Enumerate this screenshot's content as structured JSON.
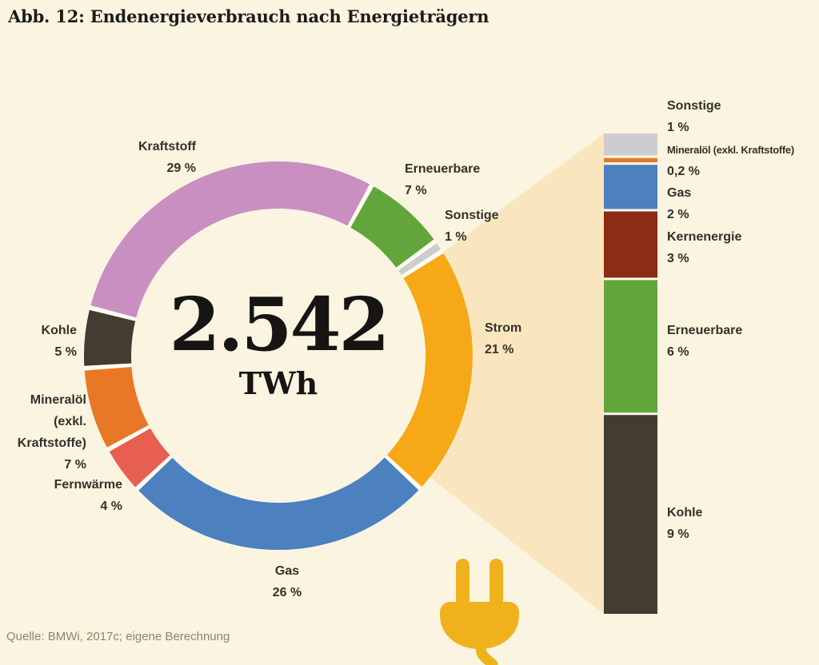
{
  "title": "Abb. 12: Endenergieverbrauch nach Energieträgern",
  "source": "Quelle: BMWi, 2017c; eigene Berechnung",
  "center": {
    "value": "2.542",
    "unit": "TWh"
  },
  "colors": {
    "background": "#FAF4E0",
    "beam": "#FAE6BE",
    "segment_gap": "#FFFCF2",
    "text": "#33312C",
    "title_text": "#1D1C1A",
    "source_text": "#8C8670",
    "plug": "#F0B21C"
  },
  "chart_data": [
    {
      "type": "pie",
      "subtype": "donut",
      "title": "Endenergieverbrauch nach Energieträgern",
      "center_value": "2.542",
      "center_unit": "TWh",
      "start_angle_deg": 57.5,
      "direction": "clockwise",
      "segments": [
        {
          "label": "Strom",
          "value_pct": 21,
          "display": "21 %",
          "color": "#F6A816"
        },
        {
          "label": "Gas",
          "value_pct": 26,
          "display": "26 %",
          "color": "#4C80BE"
        },
        {
          "label": "Fernwärme",
          "value_pct": 4,
          "display": "4 %",
          "color": "#E75F51"
        },
        {
          "label": "Mineralöl (exkl. Kraftstoffe)",
          "value_pct": 7,
          "display": "7 %",
          "color": "#E87825"
        },
        {
          "label": "Kohle",
          "value_pct": 5,
          "display": "5 %",
          "color": "#443B31"
        },
        {
          "label": "Kraftstoff",
          "value_pct": 29,
          "display": "29 %",
          "color": "#C88FC0"
        },
        {
          "label": "Erneuerbare",
          "value_pct": 7,
          "display": "7 %",
          "color": "#62A63B"
        },
        {
          "label": "Sonstige",
          "value_pct": 1,
          "display": "1 %",
          "color": "#CDCDCF"
        }
      ]
    },
    {
      "type": "bar",
      "subtype": "stacked",
      "categories": [
        "Sonstige",
        "Mineralöl (exkl. Kraftstoffe)",
        "Gas",
        "Kernenergie",
        "Erneuerbare",
        "Kohle"
      ],
      "values": [
        1,
        0.2,
        2,
        3,
        6,
        9
      ],
      "display_values": [
        "1 %",
        "0,2 %",
        "2 %",
        "3 %",
        "6 %",
        "9 %"
      ],
      "colors": [
        "#CDCDCF",
        "#E87825",
        "#4C80BE",
        "#8D2B14",
        "#62A63B",
        "#443B31"
      ]
    }
  ]
}
